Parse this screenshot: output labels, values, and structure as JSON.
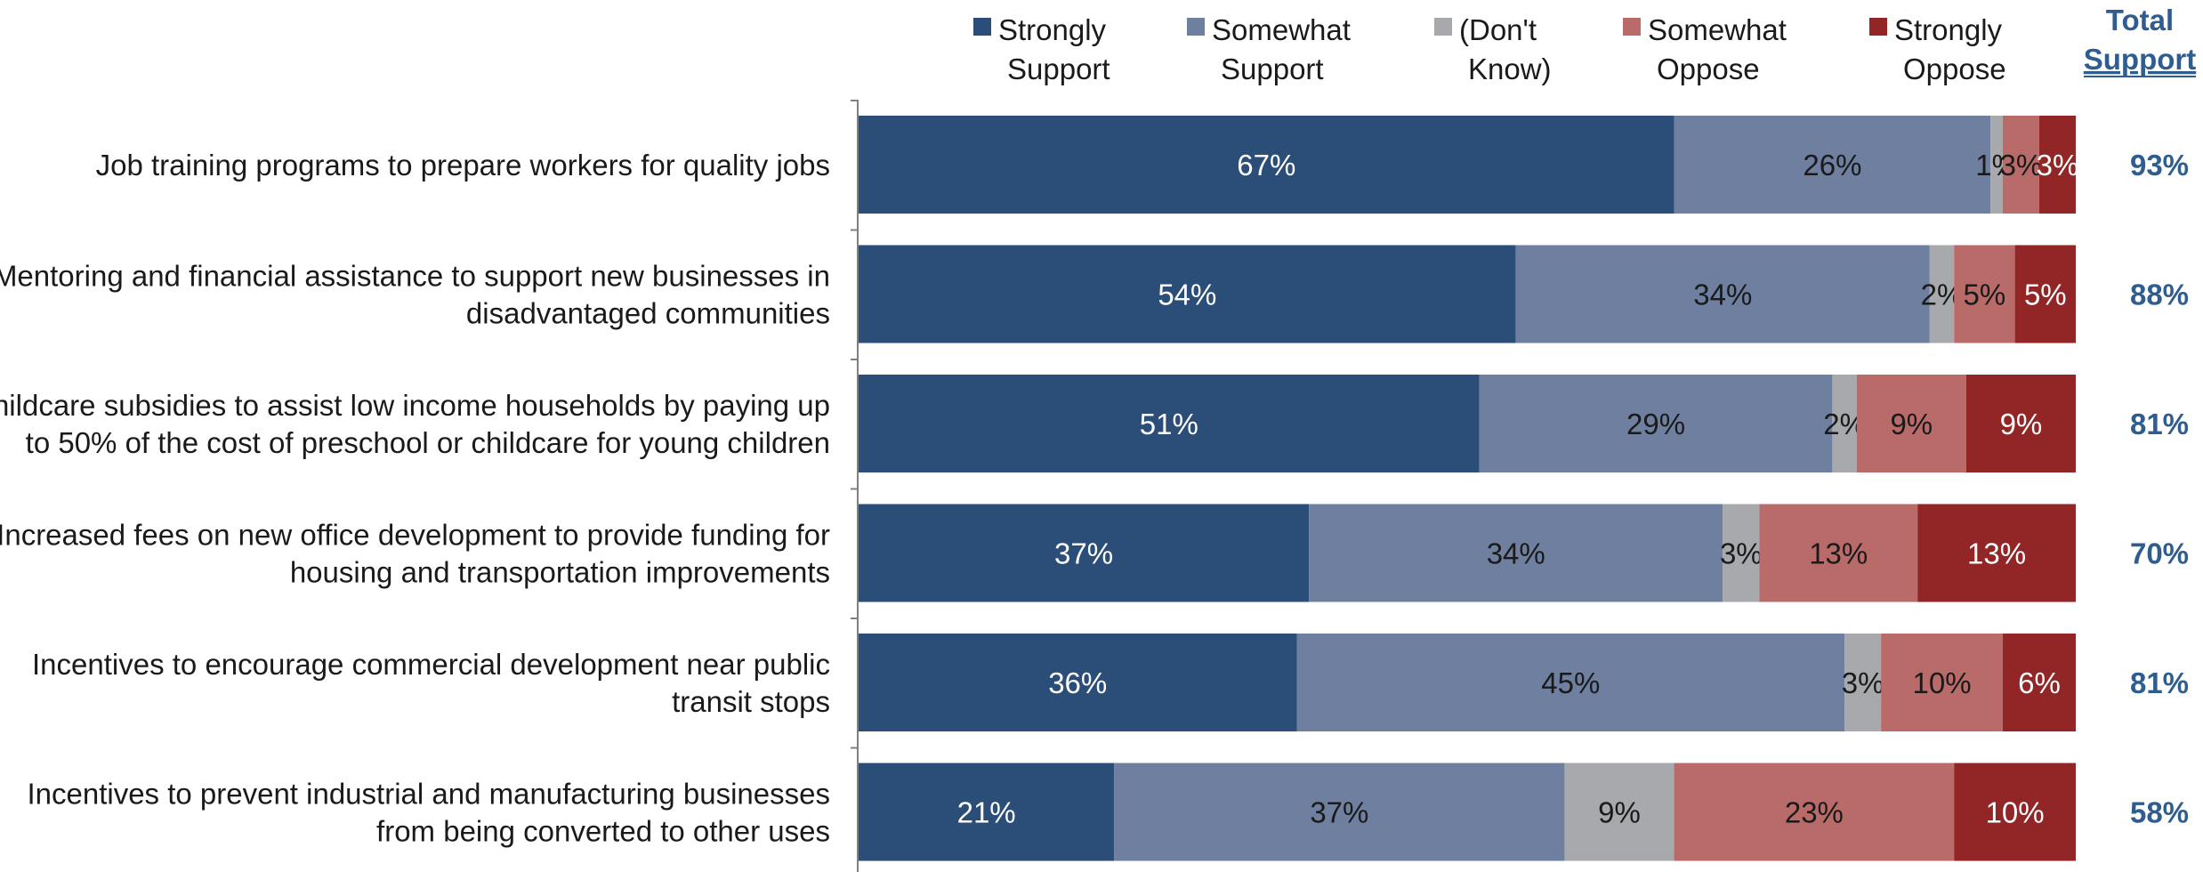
{
  "chart_data": {
    "type": "bar",
    "orientation": "horizontal",
    "stacked": true,
    "x_unit": "%",
    "xlim": [
      0,
      100
    ],
    "legend_position": "top",
    "total_header": [
      "Total",
      "Support"
    ],
    "categories": [
      [
        "Job training programs to prepare workers for quality jobs"
      ],
      [
        "Mentoring and financial assistance to support new businesses in",
        "disadvantaged communities"
      ],
      [
        "Childcare subsidies to assist low income households by paying up",
        "to 50% of the cost of preschool or childcare for young children"
      ],
      [
        "Increased fees on new office development to provide funding for",
        "housing and transportation improvements"
      ],
      [
        "Incentives to encourage commercial development near public",
        "transit stops"
      ],
      [
        "Incentives to prevent industrial and manufacturing businesses",
        "from being converted to other uses"
      ]
    ],
    "series": [
      {
        "name": [
          "Strongly",
          "Support"
        ],
        "color": "#2a4e78",
        "text_color": "#ffffff",
        "values": [
          67,
          54,
          51,
          37,
          36,
          21
        ]
      },
      {
        "name": [
          "Somewhat",
          "Support"
        ],
        "color": "#6e7fa0",
        "text_color": "#1a1a1a",
        "values": [
          26,
          34,
          29,
          34,
          45,
          37
        ]
      },
      {
        "name": [
          "(Don't",
          "Know)"
        ],
        "color": "#a8a9ad",
        "text_color": "#1a1a1a",
        "values": [
          1,
          2,
          2,
          3,
          3,
          9
        ]
      },
      {
        "name": [
          "Somewhat",
          "Oppose"
        ],
        "color": "#b96b6a",
        "text_color": "#1a1a1a",
        "values": [
          3,
          5,
          9,
          13,
          10,
          23
        ]
      },
      {
        "name": [
          "Strongly",
          "Oppose"
        ],
        "color": "#922525",
        "text_color": "#ffffff",
        "values": [
          3,
          5,
          9,
          13,
          6,
          10
        ]
      }
    ],
    "total_support": [
      93,
      88,
      81,
      70,
      81,
      58
    ]
  }
}
